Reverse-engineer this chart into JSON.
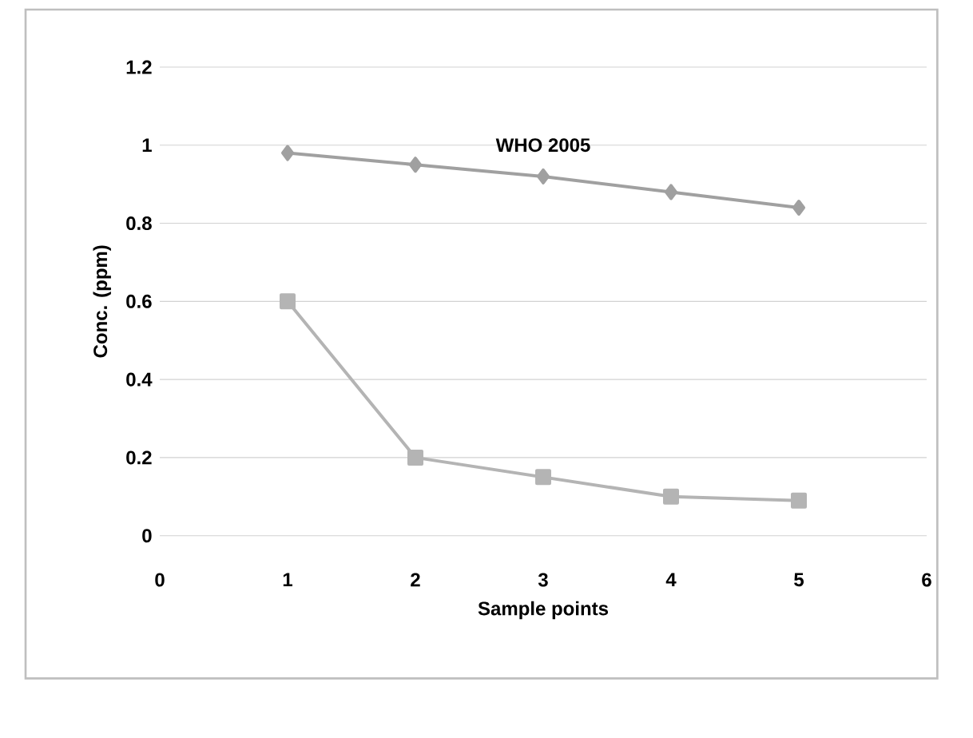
{
  "chart_data": {
    "type": "line",
    "xlabel": "Sample points",
    "ylabel": "Conc. (ppm)",
    "x": [
      1,
      2,
      3,
      4,
      5
    ],
    "series": [
      {
        "name": "WHO 2005",
        "color": "#a0a0a0",
        "marker": "diamond",
        "values": [
          0.98,
          0.95,
          0.92,
          0.88,
          0.84
        ]
      },
      {
        "color": "#b4b4b4",
        "marker": "square",
        "values": [
          0.6,
          0.2,
          0.15,
          0.1,
          0.09
        ]
      }
    ],
    "xlim": [
      0,
      6
    ],
    "xticks": [
      0,
      1,
      2,
      3,
      4,
      5,
      6
    ],
    "ylim": [
      0,
      1.2
    ],
    "yticks": [
      0,
      0.2,
      0.4,
      0.6,
      0.8,
      1,
      1.2
    ],
    "grid": "y"
  }
}
